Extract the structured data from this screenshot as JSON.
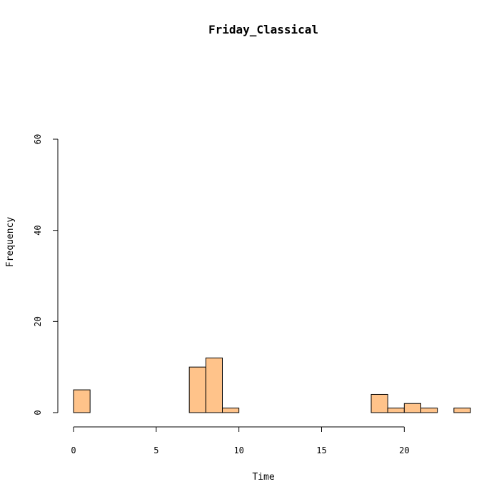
{
  "chart_data": {
    "type": "bar",
    "title": "Friday_Classical",
    "xlabel": "Time",
    "ylabel": "Frequency",
    "xlim": [
      0,
      24
    ],
    "ylim": [
      0,
      60
    ],
    "xticks": [
      0,
      5,
      10,
      15,
      20
    ],
    "yticks": [
      0,
      20,
      40,
      60
    ],
    "bin_width": 1,
    "bins": [
      {
        "start": 0,
        "end": 1,
        "count": 5
      },
      {
        "start": 1,
        "end": 2,
        "count": 0
      },
      {
        "start": 2,
        "end": 3,
        "count": 0
      },
      {
        "start": 3,
        "end": 4,
        "count": 0
      },
      {
        "start": 4,
        "end": 5,
        "count": 0
      },
      {
        "start": 5,
        "end": 6,
        "count": 0
      },
      {
        "start": 6,
        "end": 7,
        "count": 0
      },
      {
        "start": 7,
        "end": 8,
        "count": 10
      },
      {
        "start": 8,
        "end": 9,
        "count": 12
      },
      {
        "start": 9,
        "end": 10,
        "count": 1
      },
      {
        "start": 10,
        "end": 11,
        "count": 0
      },
      {
        "start": 11,
        "end": 12,
        "count": 0
      },
      {
        "start": 12,
        "end": 13,
        "count": 0
      },
      {
        "start": 13,
        "end": 14,
        "count": 0
      },
      {
        "start": 14,
        "end": 15,
        "count": 0
      },
      {
        "start": 15,
        "end": 16,
        "count": 0
      },
      {
        "start": 16,
        "end": 17,
        "count": 0
      },
      {
        "start": 17,
        "end": 18,
        "count": 0
      },
      {
        "start": 18,
        "end": 19,
        "count": 4
      },
      {
        "start": 19,
        "end": 20,
        "count": 1
      },
      {
        "start": 20,
        "end": 21,
        "count": 2
      },
      {
        "start": 21,
        "end": 22,
        "count": 1
      },
      {
        "start": 22,
        "end": 23,
        "count": 0
      },
      {
        "start": 23,
        "end": 24,
        "count": 1
      }
    ],
    "bar_color": "#FFC38A",
    "grid": false,
    "legend": "none"
  }
}
